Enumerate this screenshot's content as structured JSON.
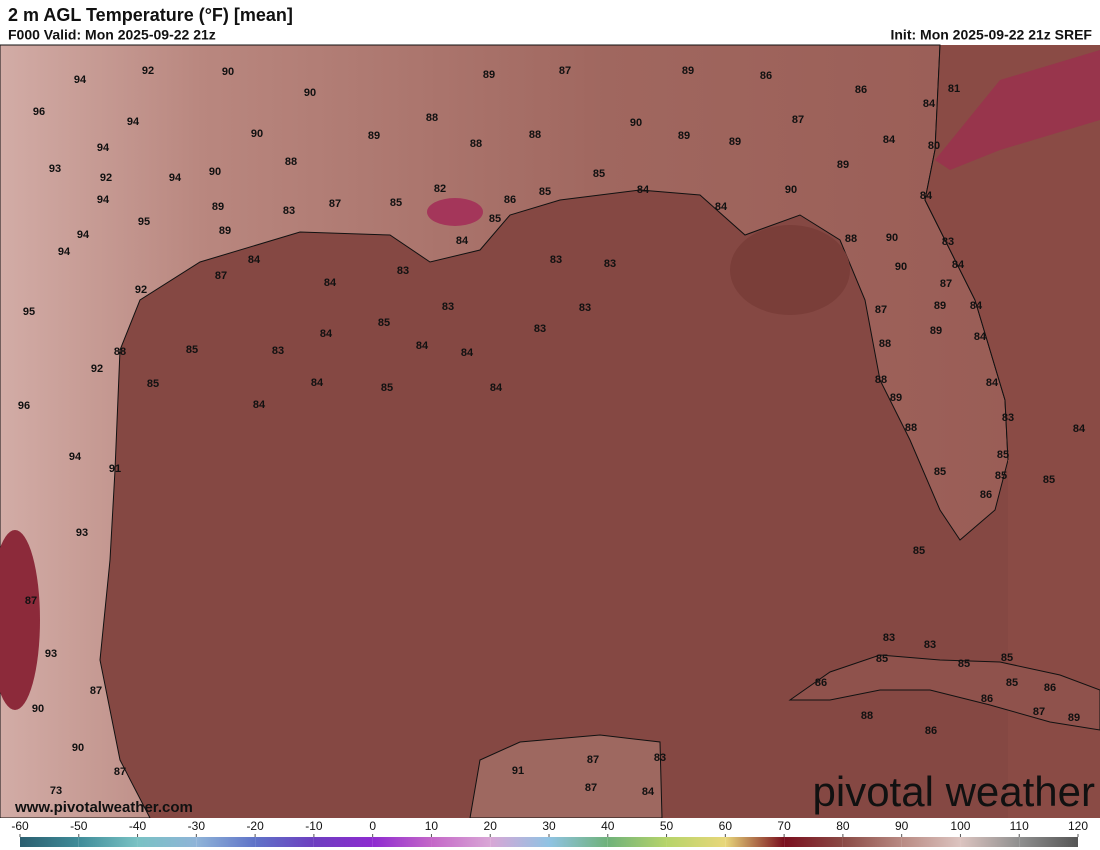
{
  "header": {
    "title": "2 m AGL Temperature (°F) [mean]",
    "valid": "F000 Valid: Mon 2025-09-22 21z",
    "init": "Init: Mon 2025-09-22 21z SREF"
  },
  "map": {
    "station_values": [
      94,
      92,
      90,
      96,
      94,
      90,
      89,
      87,
      89,
      86,
      86,
      84,
      81,
      94,
      90,
      89,
      88,
      88,
      88,
      90,
      89,
      89,
      87,
      84,
      80,
      93,
      92,
      94,
      90,
      88,
      89,
      94,
      89,
      83,
      87,
      85,
      82,
      86,
      85,
      85,
      84,
      90,
      84,
      95,
      89,
      85,
      84,
      94,
      94,
      84,
      84,
      83,
      83,
      88,
      90,
      83,
      87,
      83,
      84,
      90,
      84,
      92,
      87,
      95,
      83,
      83,
      89,
      84,
      85,
      84,
      83,
      87,
      89,
      84,
      88,
      85,
      83,
      84,
      84,
      88,
      92,
      85,
      84,
      85,
      84,
      88,
      89,
      84,
      96,
      84,
      88,
      83,
      84,
      94,
      91,
      85,
      85,
      85,
      85,
      86,
      93,
      85,
      87,
      83,
      83,
      93,
      85,
      85,
      85,
      86,
      85,
      86,
      87,
      86,
      90,
      88,
      87,
      89,
      86,
      90,
      83,
      91,
      87,
      87,
      87,
      84,
      73
    ]
  },
  "colorbar": {
    "ticks": [
      -60,
      -50,
      -40,
      -30,
      -20,
      -10,
      0,
      10,
      20,
      30,
      40,
      50,
      60,
      70,
      80,
      90,
      100,
      110,
      120
    ],
    "colors": [
      "#2b5f70",
      "#3f8c99",
      "#79c2c4",
      "#8fb4d8",
      "#5f73c8",
      "#6d3fc0",
      "#8e2bd0",
      "#c467c8",
      "#d9a6d6",
      "#8fc3e3",
      "#6fb27a",
      "#b6d46a",
      "#e8d77a",
      "#7a0f1e",
      "#8a4a45",
      "#b98a83",
      "#dcc4c0",
      "#8f8f8f",
      "#555555"
    ]
  },
  "watermark": {
    "logo": "pivotal weather",
    "url": "www.pivotalweather.com"
  }
}
